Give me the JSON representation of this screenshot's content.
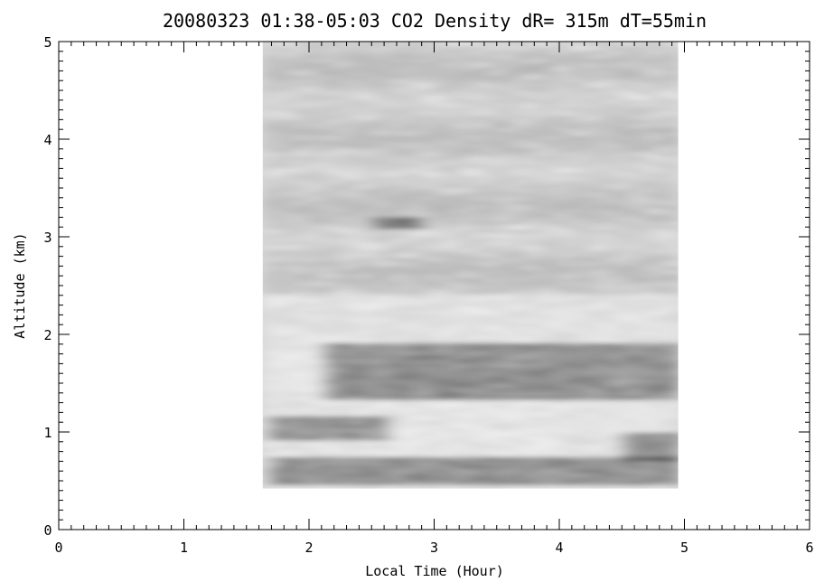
{
  "chart_data": {
    "type": "heatmap",
    "title": "20080323 01:38-05:03 CO2 Density dR= 315m dT=55min",
    "xlabel": "Local Time (Hour)",
    "ylabel": "Altitude (km)",
    "xlim": [
      0,
      6
    ],
    "ylim": [
      0,
      5
    ],
    "xticks": [
      "0",
      "1",
      "2",
      "3",
      "4",
      "5",
      "6"
    ],
    "yticks": [
      "0",
      "1",
      "2",
      "3",
      "4",
      "5"
    ],
    "colormap": "grayscale",
    "data_extent": {
      "x": [
        1.63,
        4.95
      ],
      "y": [
        0.42,
        5.0
      ]
    },
    "dark_regions": [
      {
        "x": [
          1.65,
          2.6
        ],
        "y": [
          0.9,
          1.15
        ]
      },
      {
        "x": [
          1.65,
          4.9
        ],
        "y": [
          0.45,
          0.75
        ]
      },
      {
        "x": [
          4.5,
          4.95
        ],
        "y": [
          0.7,
          1.0
        ]
      },
      {
        "x": [
          2.1,
          4.95
        ],
        "y": [
          1.3,
          1.9
        ]
      },
      {
        "x": [
          2.5,
          2.85
        ],
        "y": [
          3.05,
          3.2
        ]
      }
    ]
  }
}
